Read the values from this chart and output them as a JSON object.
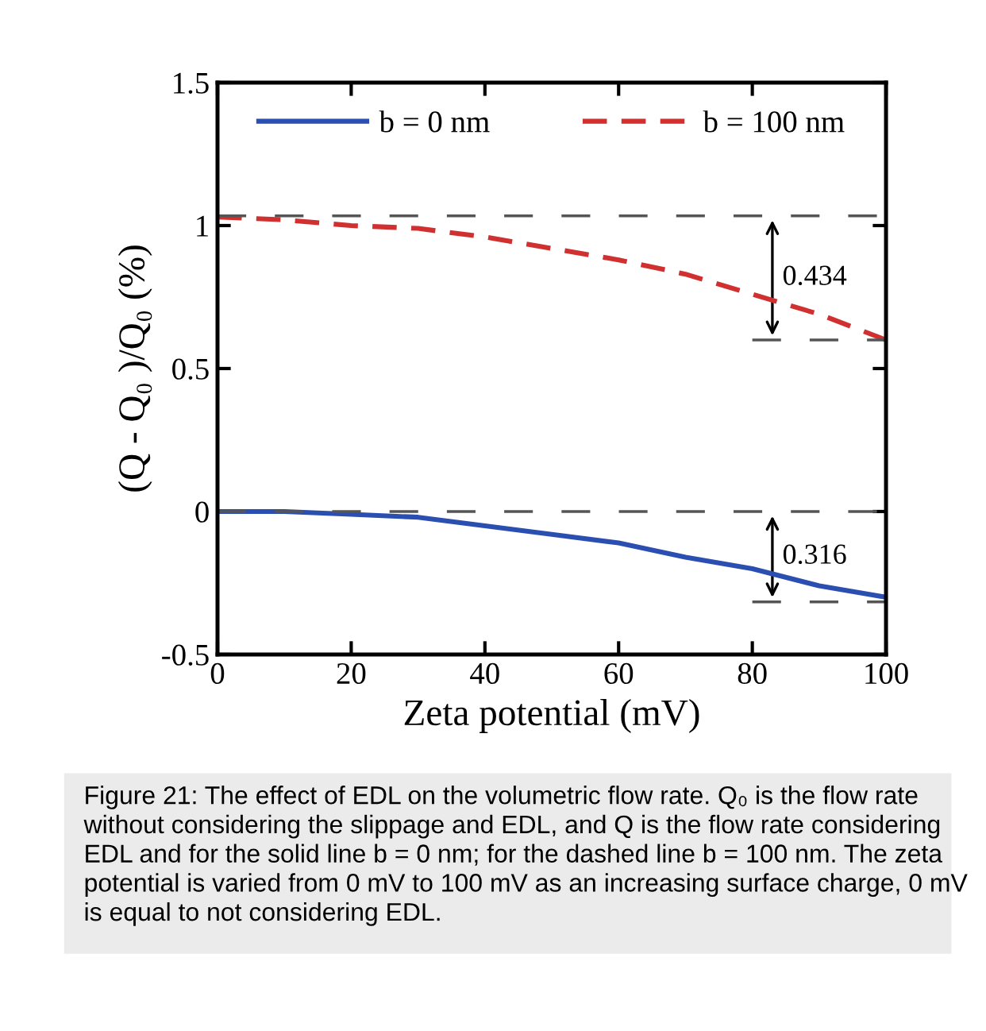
{
  "chart_data": {
    "type": "line",
    "xlabel": "Zeta potential (mV)",
    "ylabel": "(Q - Q₀ )/Q₀ (%)",
    "x": [
      0,
      10,
      20,
      30,
      40,
      50,
      60,
      70,
      80,
      90,
      100
    ],
    "series": [
      {
        "name": "b = 0 nm",
        "color": "#2a4fb0",
        "line_style": "solid",
        "values": [
          0,
          0,
          -0.01,
          -0.02,
          -0.05,
          -0.08,
          -0.11,
          -0.16,
          -0.2,
          -0.26,
          -0.3
        ]
      },
      {
        "name": "b = 100 nm",
        "color": "#d03030",
        "line_style": "dashed",
        "values": [
          1.03,
          1.02,
          1.0,
          0.99,
          0.96,
          0.92,
          0.88,
          0.83,
          0.76,
          0.69,
          0.6
        ]
      }
    ],
    "xlim": [
      0,
      100
    ],
    "xticks": [
      0,
      20,
      40,
      60,
      80,
      100
    ],
    "ylim": [
      -0.5,
      1.5
    ],
    "yticks": [
      -0.5,
      0,
      0.5,
      1,
      1.5
    ],
    "ref_lines": [
      {
        "axis": "y",
        "value": 1.034,
        "color": "#555555",
        "line_style": "dashed"
      },
      {
        "axis": "y",
        "value": 0.6,
        "color": "#555555",
        "line_style": "dashed"
      },
      {
        "axis": "y",
        "value": 0,
        "color": "#555555",
        "line_style": "dashed"
      },
      {
        "axis": "y",
        "value": -0.316,
        "color": "#555555",
        "line_style": "dashed"
      }
    ],
    "legend": "top",
    "grid": false,
    "annotations": [
      "0.434",
      "0.316",
      "Figure 21: The effect of EDL on the volumetric flow rate. Q₀ is the flow rate without considering the slippage and EDL, and Q is the flow rate considering EDL and for the solid line b = 0 nm; for the dashed line b = 100 nm. The zeta potential is varied from 0 mV to 100 mV as an increasing surface charge, 0 mV is equal to not considering EDL."
    ]
  }
}
